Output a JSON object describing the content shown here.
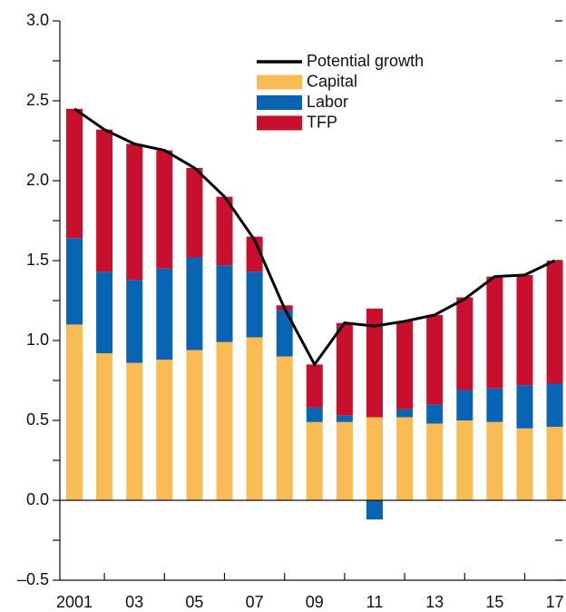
{
  "chart_data": {
    "type": "stacked_bar_line",
    "categories": [
      "2001",
      null,
      "03",
      null,
      "05",
      null,
      "07",
      null,
      "09",
      null,
      "11",
      null,
      "13",
      null,
      "15",
      null,
      "17"
    ],
    "series": [
      {
        "name": "Capital",
        "color": "#f9bc55",
        "kind": "bar",
        "values": [
          1.1,
          0.92,
          0.86,
          0.88,
          0.94,
          0.99,
          1.02,
          0.9,
          0.49,
          0.49,
          0.52,
          0.52,
          0.48,
          0.5,
          0.49,
          0.45,
          0.46
        ]
      },
      {
        "name": "Labor",
        "color": "#0a64b4",
        "kind": "bar",
        "values": [
          0.54,
          0.51,
          0.52,
          0.57,
          0.58,
          0.48,
          0.41,
          0.29,
          0.09,
          0.04,
          -0.12,
          0.05,
          0.12,
          0.19,
          0.21,
          0.27,
          0.27
        ]
      },
      {
        "name": "TFP",
        "color": "#c8102e",
        "kind": "bar",
        "values": [
          0.81,
          0.89,
          0.85,
          0.74,
          0.56,
          0.43,
          0.22,
          0.03,
          0.27,
          0.58,
          0.68,
          0.55,
          0.56,
          0.58,
          0.7,
          0.69,
          0.77
        ]
      },
      {
        "name": "Potential growth",
        "color": "#000000",
        "kind": "line",
        "values": [
          2.45,
          2.32,
          2.23,
          2.19,
          2.08,
          1.9,
          1.63,
          1.2,
          0.85,
          1.11,
          1.09,
          1.12,
          1.16,
          1.26,
          1.4,
          1.41,
          1.5
        ]
      }
    ],
    "ylim": [
      -0.5,
      3.0
    ],
    "yticks": [
      {
        "value": -0.5,
        "label": "–0.5"
      },
      {
        "value": 0,
        "label": "0.0"
      },
      {
        "value": 0.5,
        "label": "0.5"
      },
      {
        "value": 1,
        "label": "1.0"
      },
      {
        "value": 1.5,
        "label": "1.5"
      },
      {
        "value": 2,
        "label": "2.0"
      },
      {
        "value": 2.5,
        "label": "2.5"
      },
      {
        "value": 3,
        "label": "3.0"
      }
    ],
    "yticks_minor": [
      -0.25,
      0.25,
      0.75,
      1.25,
      1.75,
      2.25,
      2.75
    ],
    "legend": "top"
  }
}
